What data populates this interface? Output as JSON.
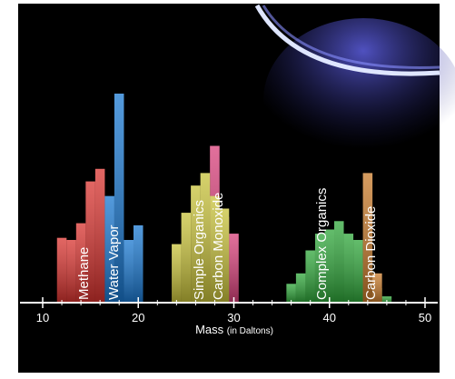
{
  "chart_data": {
    "type": "bar",
    "xlabel": "Mass",
    "xlabel_unit": "(in Daltons)",
    "xlim": [
      10,
      50
    ],
    "xticks": [
      10,
      20,
      30,
      40,
      50
    ],
    "xminorticks": [
      12,
      14,
      16,
      18,
      22,
      24,
      26,
      28,
      32,
      34,
      36,
      38,
      42,
      44,
      46,
      48
    ],
    "ylim": [
      0,
      100
    ],
    "series": [
      {
        "name": "Methane",
        "color": "#d8332f",
        "x": [
          12,
          13,
          14,
          15,
          16
        ],
        "values": [
          31,
          30,
          38,
          58,
          64
        ]
      },
      {
        "name": "Water Vapor",
        "color": "#1a78d0",
        "x": [
          17,
          18,
          19,
          20
        ],
        "values": [
          51,
          100,
          30,
          37
        ]
      },
      {
        "name": "Carbon Monoxide",
        "color": "#d8407a",
        "x": [
          28,
          29,
          30
        ],
        "values": [
          75,
          41,
          33
        ]
      },
      {
        "name": "Simple Organics",
        "color": "#c8c23a",
        "x": [
          24,
          25,
          26,
          27,
          28,
          29
        ],
        "values": [
          28,
          43,
          56,
          62,
          51,
          45
        ]
      },
      {
        "name": "Complex Organics",
        "color": "#2fa63a",
        "x": [
          36,
          37,
          38,
          39,
          40,
          41,
          42,
          43,
          44,
          45,
          46
        ],
        "values": [
          9,
          14,
          25,
          33,
          35,
          39,
          33,
          30,
          19,
          7,
          3
        ]
      },
      {
        "name": "Carbon Dioxide",
        "color": "#c87a2a",
        "x": [
          44,
          45
        ],
        "values": [
          62,
          14
        ]
      }
    ]
  }
}
